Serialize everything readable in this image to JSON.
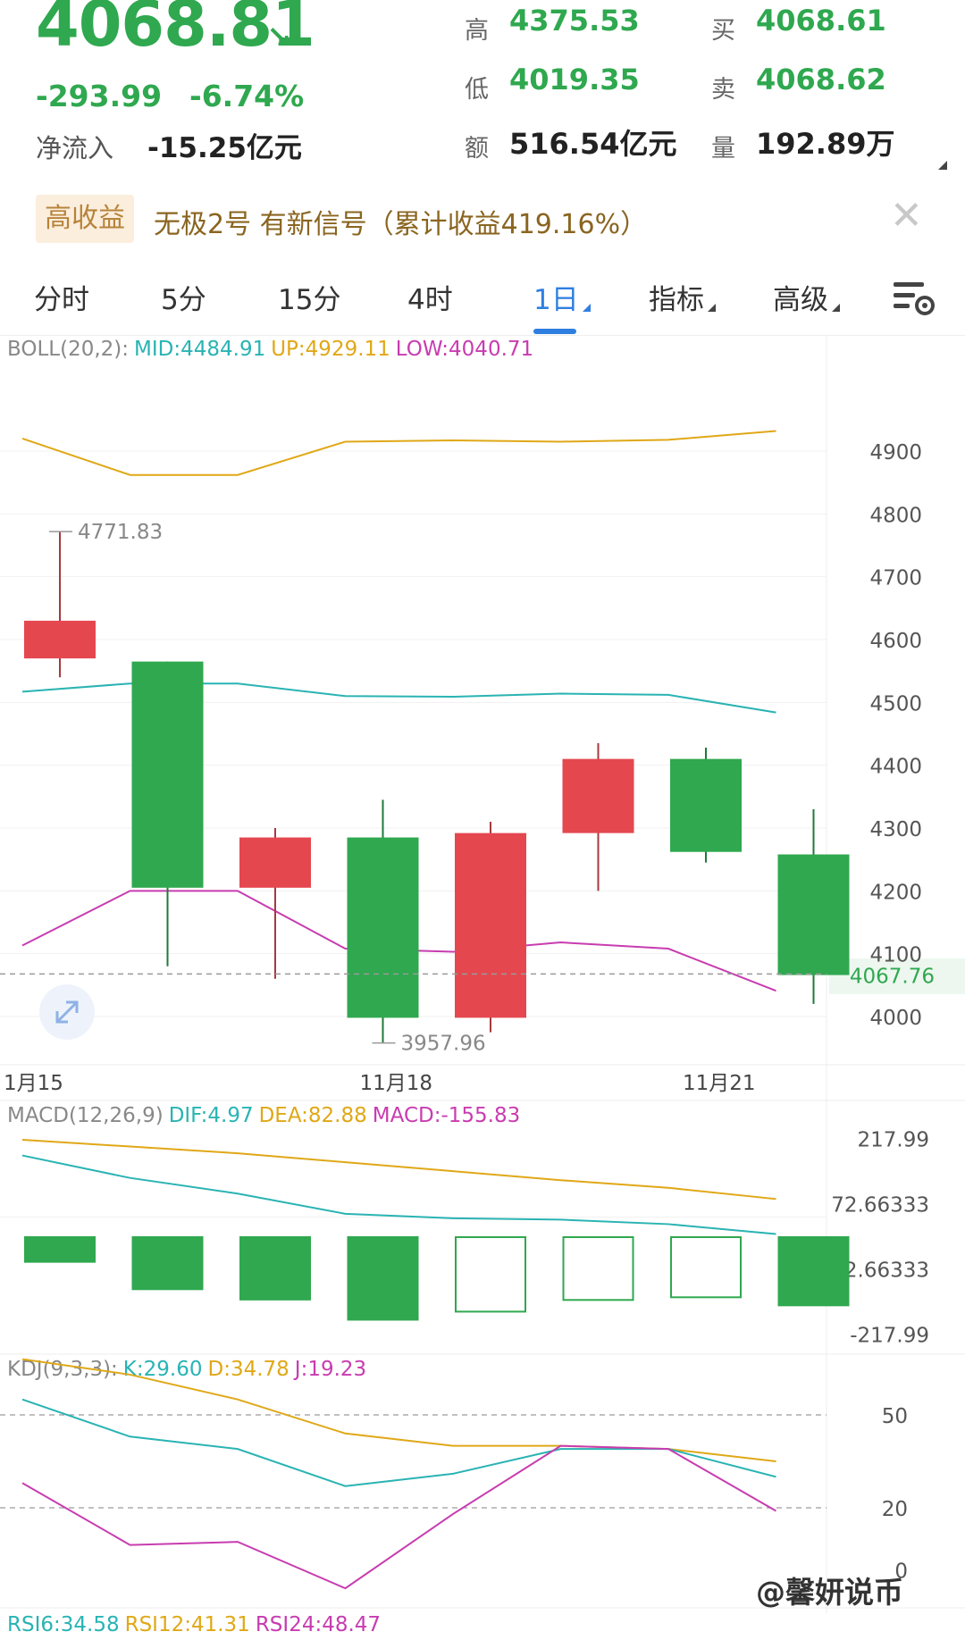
{
  "quote": {
    "price": "4068.81",
    "change": "-293.99",
    "change_pct": "-6.74%",
    "net_inflow_label": "净流入",
    "net_inflow_value": "-15.25亿元",
    "high_label": "高",
    "high_value": "4375.53",
    "low_label": "低",
    "low_value": "4019.35",
    "amount_label": "额",
    "amount_value": "516.54亿元",
    "buy_label": "买",
    "buy_value": "4068.61",
    "sell_label": "卖",
    "sell_value": "4068.62",
    "volume_label": "量",
    "volume_value": "192.89万",
    "up_color": "#e5474f",
    "down_color": "#2fa84f"
  },
  "promo": {
    "badge": "高收益",
    "text": "无极2号 有新信号（累计收益419.16%）",
    "close_icon": "close-icon"
  },
  "tabs": [
    {
      "label": "分时"
    },
    {
      "label": "5分"
    },
    {
      "label": "15分"
    },
    {
      "label": "4时"
    },
    {
      "label": "1日",
      "active": true
    },
    {
      "label": "指标"
    },
    {
      "label": "高级"
    }
  ],
  "boll": {
    "name": "BOLL(20,2):",
    "mid": "MID:4484.91",
    "up": "UP:4929.11",
    "low": "LOW:4040.71"
  },
  "macd": {
    "name": "MACD(12,26,9)",
    "dif": "DIF:4.97",
    "dea": "DEA:82.88",
    "macd": "MACD:-155.83"
  },
  "kdj": {
    "name": "KDJ(9,3,3):",
    "k": "K:29.60",
    "d": "D:34.78",
    "j": "J:19.23"
  },
  "rsi": {
    "rsi6": "RSI6:34.58",
    "rsi12": "RSI12:41.31",
    "rsi24": "RSI24:48.47"
  },
  "watermark": "@馨妍说币",
  "chart_data": {
    "type": "candlestick",
    "price_axis": [
      "4900",
      "4800",
      "4700",
      "4600",
      "4500",
      "4400",
      "4300",
      "4200",
      "4100",
      "4000"
    ],
    "price_axis_values": [
      4900,
      4800,
      4700,
      4600,
      4500,
      4400,
      4300,
      4200,
      4100,
      4000
    ],
    "current_price_label": "4067.76",
    "current_price": 4067.76,
    "date_labels": [
      {
        "text": "1月15",
        "index": 0
      },
      {
        "text": "11月18",
        "index": 3
      },
      {
        "text": "11月21",
        "index": 6
      }
    ],
    "annotations": [
      {
        "text": "4771.83",
        "index": 0,
        "value": 4771.83
      },
      {
        "text": "3957.96",
        "index": 3,
        "value": 3957.96
      }
    ],
    "candles": [
      {
        "open": 4570,
        "close": 4630,
        "high": 4771.83,
        "low": 4540
      },
      {
        "open": 4565,
        "close": 4205,
        "high": 4565,
        "low": 4080
      },
      {
        "open": 4205,
        "close": 4285,
        "high": 4300,
        "low": 4060
      },
      {
        "open": 4285,
        "close": 3998,
        "high": 4345,
        "low": 3957.96
      },
      {
        "open": 3998,
        "close": 4292,
        "high": 4310,
        "low": 3975
      },
      {
        "open": 4292,
        "close": 4410,
        "high": 4435,
        "low": 4200
      },
      {
        "open": 4410,
        "close": 4262,
        "high": 4428,
        "low": 4245
      },
      {
        "open": 4258,
        "close": 4066,
        "high": 4330,
        "low": 4020
      }
    ],
    "boll_up": [
      4920,
      4862,
      4862,
      4915,
      4917,
      4915,
      4918,
      4932
    ],
    "boll_mid": [
      4517,
      4530,
      4530,
      4510,
      4509,
      4514,
      4512,
      4484
    ],
    "boll_low": [
      4113,
      4200,
      4200,
      4108,
      4103,
      4118,
      4108,
      4041
    ],
    "macd_axis": [
      "217.99",
      "72.66333",
      "-72.66333",
      "-217.99"
    ],
    "macd_axis_values": [
      217.99,
      72.66333,
      -72.66333,
      -217.99
    ],
    "macd_dif": [
      180,
      130,
      95,
      50,
      40,
      37,
      27,
      5
    ],
    "macd_dea": [
      215,
      200,
      185,
      165,
      145,
      125,
      108,
      83
    ],
    "macd_hist": [
      -59,
      -120,
      -143,
      -188,
      -170,
      -144,
      -138,
      -156
    ],
    "macd_hist_hollow": [
      false,
      false,
      false,
      false,
      true,
      true,
      true,
      false
    ],
    "kdj_axis": [
      "50",
      "20",
      "0"
    ],
    "kdj_axis_values": [
      50,
      20,
      0
    ],
    "kdj_k": [
      55,
      43,
      39,
      27,
      31,
      39,
      39,
      30
    ],
    "kdj_d": [
      68,
      63,
      55,
      44,
      40,
      40,
      39,
      35
    ],
    "kdj_j": [
      28,
      8,
      9,
      -6,
      18,
      40,
      39,
      19
    ]
  }
}
